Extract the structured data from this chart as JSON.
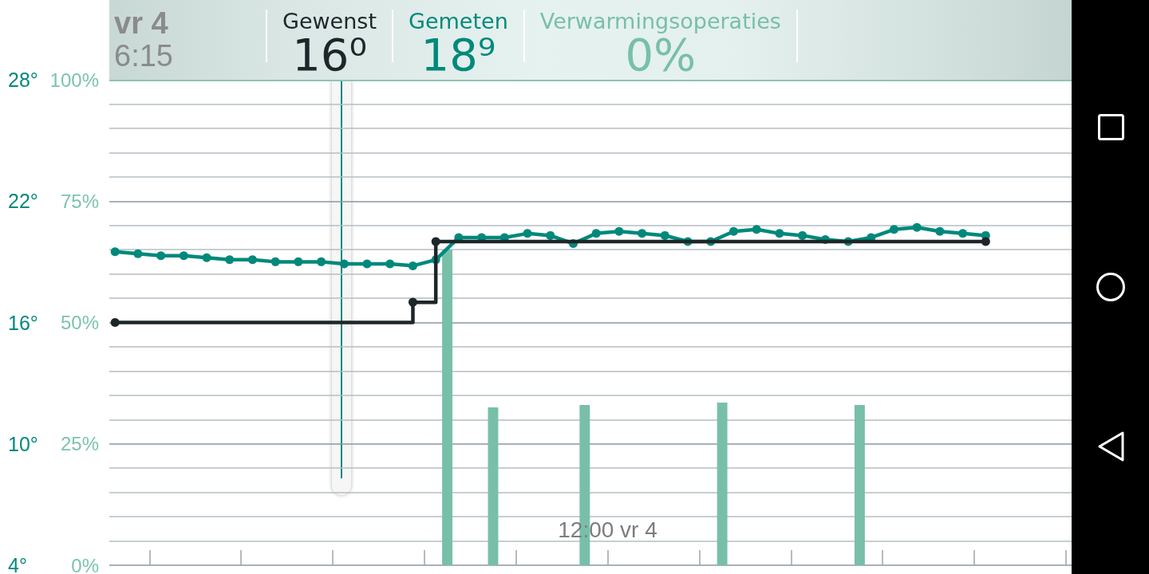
{
  "chart_data": {
    "type": "line",
    "title": "vr 4",
    "subtitle": "6:15",
    "categories": [
      null,
      null,
      null,
      null,
      null,
      null,
      null,
      null,
      null,
      null,
      null,
      null,
      null,
      null,
      null,
      null,
      null,
      null,
      null,
      null,
      null,
      null,
      null,
      null,
      null,
      null,
      null,
      null,
      null,
      null,
      null,
      null,
      null,
      null,
      null,
      null,
      null,
      null,
      null,
      null,
      null,
      null,
      null,
      "12:00 vr 4",
      null,
      null,
      null,
      null,
      null,
      null,
      null,
      null,
      null,
      null,
      null,
      null,
      null,
      null,
      null,
      null,
      null,
      null,
      null,
      null,
      null,
      null,
      null,
      null,
      null,
      null,
      null,
      null,
      null,
      null,
      null,
      null,
      null,
      null,
      null,
      null,
      null,
      null,
      null,
      null
    ],
    "ylim": [
      4,
      28
    ],
    "yticks": [
      {
        "value": 4,
        "label": "4°"
      },
      {
        "value": 10,
        "label": "10°"
      },
      {
        "value": 16,
        "label": "16°"
      },
      {
        "value": 22,
        "label": "22°"
      },
      {
        "value": 28,
        "label": "28°"
      }
    ],
    "y2lim": [
      0,
      100
    ],
    "y2ticks": [
      {
        "value": 0,
        "label": "0%"
      },
      {
        "value": 5,
        "label": null
      },
      {
        "value": 10,
        "label": null
      },
      {
        "value": 15,
        "label": null
      },
      {
        "value": 20,
        "label": null
      },
      {
        "value": 25,
        "label": "25%"
      },
      {
        "value": 30,
        "label": null
      },
      {
        "value": 35,
        "label": null
      },
      {
        "value": 40,
        "label": null
      },
      {
        "value": 45,
        "label": null
      },
      {
        "value": 50,
        "label": "50%"
      },
      {
        "value": 55,
        "label": null
      },
      {
        "value": 60,
        "label": null
      },
      {
        "value": 65,
        "label": null
      },
      {
        "value": 70,
        "label": null
      },
      {
        "value": 75,
        "label": "75%"
      },
      {
        "value": 80,
        "label": null
      },
      {
        "value": 85,
        "label": null
      },
      {
        "value": 90,
        "label": null
      },
      {
        "value": 95,
        "label": null
      },
      {
        "value": 100,
        "label": "100%"
      }
    ],
    "series": [
      {
        "name": "Gewenst",
        "type": "step",
        "color": "#1d2628",
        "values": [
          16,
          null,
          null,
          null,
          null,
          null,
          null,
          null,
          null,
          null,
          null,
          null,
          null,
          null,
          null,
          null,
          null,
          null,
          null,
          null,
          null,
          null,
          null,
          null,
          null,
          null,
          17,
          null,
          20,
          null,
          null,
          null,
          null,
          null,
          null,
          null,
          null,
          null,
          null,
          null,
          null,
          null,
          null,
          null,
          null,
          null,
          null,
          null,
          null,
          null,
          null,
          null,
          null,
          null,
          null,
          null,
          null,
          null,
          null,
          null,
          null,
          null,
          null,
          null,
          null,
          null,
          null,
          null,
          null,
          null,
          null,
          null,
          null,
          null,
          null,
          null,
          20,
          null,
          null,
          null,
          null,
          null,
          null,
          null
        ]
      },
      {
        "name": "Gemeten",
        "color": "#00897b",
        "values": [
          19.5,
          null,
          19.4,
          null,
          19.3,
          null,
          19.3,
          null,
          19.2,
          null,
          19.1,
          null,
          19.1,
          null,
          19.0,
          null,
          19.0,
          null,
          19.0,
          null,
          18.9,
          null,
          18.9,
          null,
          18.9,
          null,
          18.8,
          null,
          19.1,
          null,
          20.2,
          null,
          20.2,
          null,
          20.2,
          null,
          20.4,
          null,
          20.3,
          null,
          19.9,
          null,
          20.4,
          null,
          20.5,
          null,
          20.4,
          null,
          20.3,
          null,
          20.0,
          null,
          20.0,
          null,
          20.5,
          null,
          20.6,
          null,
          20.4,
          null,
          20.3,
          null,
          20.1,
          null,
          20.0,
          null,
          20.2,
          null,
          20.6,
          null,
          20.7,
          null,
          20.5,
          null,
          20.4,
          null,
          20.3,
          null,
          null,
          null,
          null,
          null,
          null,
          null
        ]
      },
      {
        "name": "Verwarmingsoperaties",
        "type": "bar",
        "axis": "y2",
        "color": "#78bfa9",
        "values": [
          null,
          null,
          null,
          null,
          null,
          null,
          null,
          null,
          null,
          null,
          null,
          null,
          null,
          null,
          null,
          null,
          null,
          null,
          null,
          null,
          null,
          null,
          null,
          null,
          null,
          null,
          null,
          null,
          null,
          65,
          null,
          null,
          null,
          32.5,
          null,
          null,
          null,
          null,
          null,
          null,
          null,
          33,
          null,
          null,
          null,
          null,
          null,
          null,
          null,
          null,
          null,
          null,
          null,
          33.5,
          null,
          null,
          null,
          null,
          null,
          null,
          null,
          null,
          null,
          null,
          null,
          33,
          null,
          null,
          null,
          null,
          null,
          null,
          null,
          null,
          null,
          null,
          null,
          null,
          null,
          null,
          null,
          null,
          null,
          null
        ]
      }
    ],
    "annotations": [
      "16⁰",
      "18⁹",
      "0%"
    ],
    "grid": "y",
    "legend": "top",
    "marker": "circle"
  }
}
